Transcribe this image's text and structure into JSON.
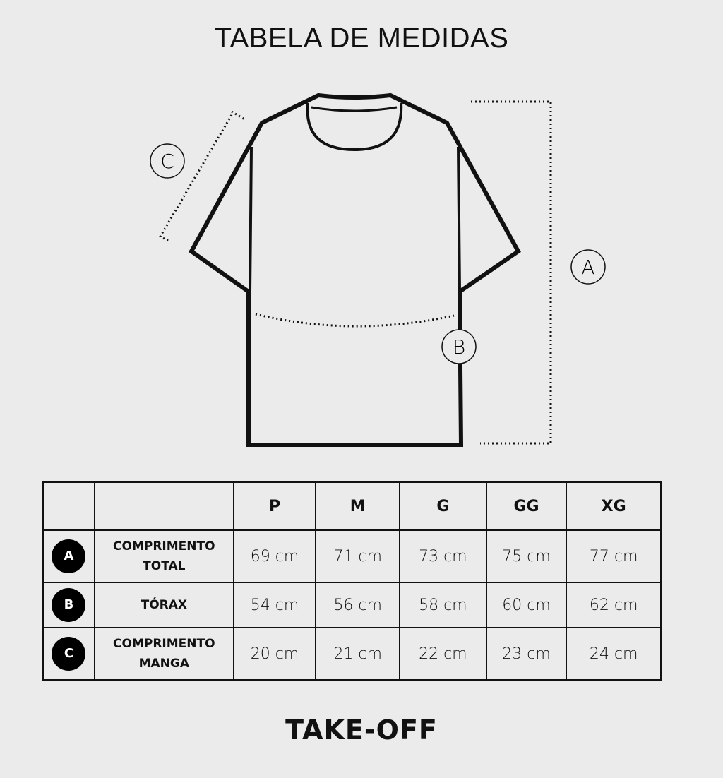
{
  "title": "TABELA DE MEDIDAS",
  "diagram": {
    "labels": [
      "A",
      "B",
      "C"
    ]
  },
  "table": {
    "sizes": [
      "P",
      "M",
      "G",
      "GG",
      "XG"
    ],
    "rows": [
      {
        "key": "A",
        "name_line1": "COMPRIMENTO",
        "name_line2": "TOTAL",
        "values": [
          "69 cm",
          "71 cm",
          "73 cm",
          "75 cm",
          "77 cm"
        ]
      },
      {
        "key": "B",
        "name_line1": "TÓRAX",
        "name_line2": "",
        "values": [
          "54 cm",
          "56 cm",
          "58 cm",
          "60 cm",
          "62 cm"
        ]
      },
      {
        "key": "C",
        "name_line1": "COMPRIMENTO",
        "name_line2": "MANGA",
        "values": [
          "20 cm",
          "21 cm",
          "22 cm",
          "23 cm",
          "24 cm"
        ]
      }
    ]
  },
  "footer": "TAKE-OFF"
}
